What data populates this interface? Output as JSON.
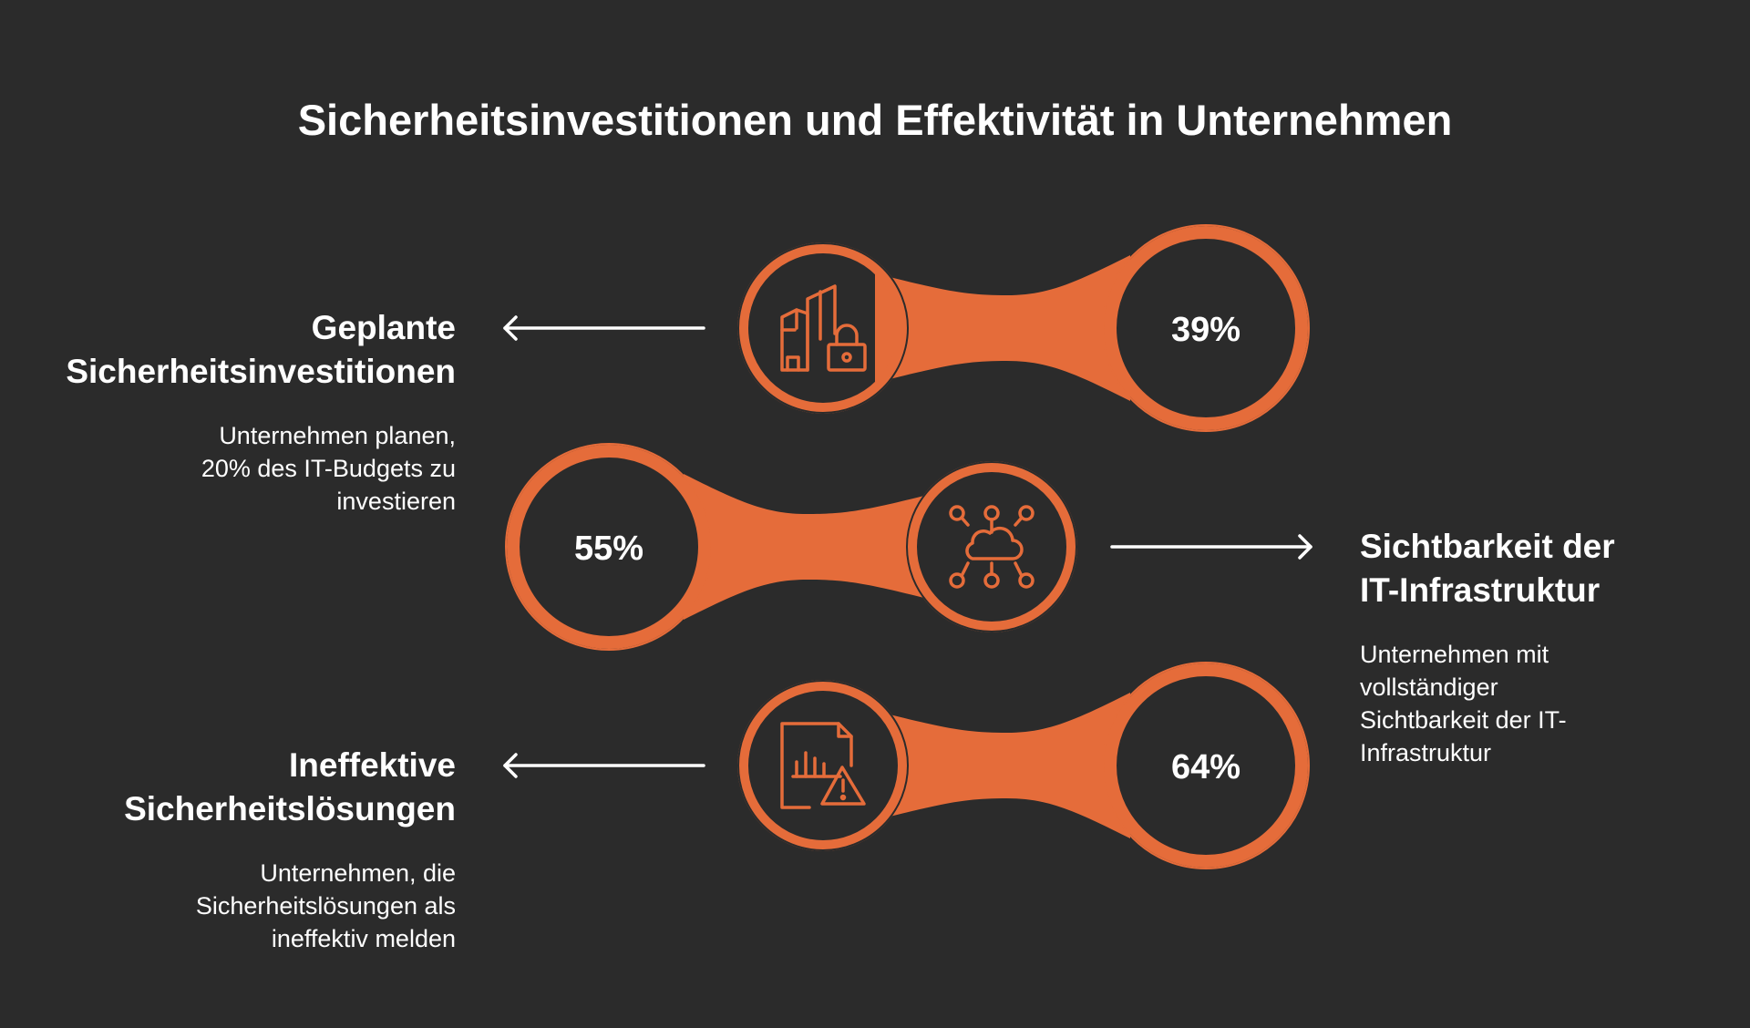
{
  "title": "Sicherheitsinvestitionen und Effektivität in Unternehmen",
  "colors": {
    "background": "#2b2b2b",
    "accent": "#e56c3a",
    "text": "#ffffff"
  },
  "items": [
    {
      "percent": "39%",
      "heading_lines": [
        "Geplante",
        "Sicherheitsinvestitionen"
      ],
      "description_lines": [
        "Unternehmen planen,",
        "20% des IT-Budgets zu",
        "investieren"
      ],
      "icon": "buildings-lock-icon",
      "side": "left"
    },
    {
      "percent": "55%",
      "heading_lines": [
        "Sichtbarkeit der",
        "IT-Infrastruktur"
      ],
      "description_lines": [
        "Unternehmen mit",
        "vollständiger",
        "Sichtbarkeit der IT-",
        "Infrastruktur"
      ],
      "icon": "cloud-network-icon",
      "side": "right"
    },
    {
      "percent": "64%",
      "heading_lines": [
        "Ineffektive",
        "Sicherheitslösungen"
      ],
      "description_lines": [
        "Unternehmen, die",
        "Sicherheitslösungen als",
        "ineffektiv melden"
      ],
      "icon": "report-warning-icon",
      "side": "left"
    }
  ]
}
